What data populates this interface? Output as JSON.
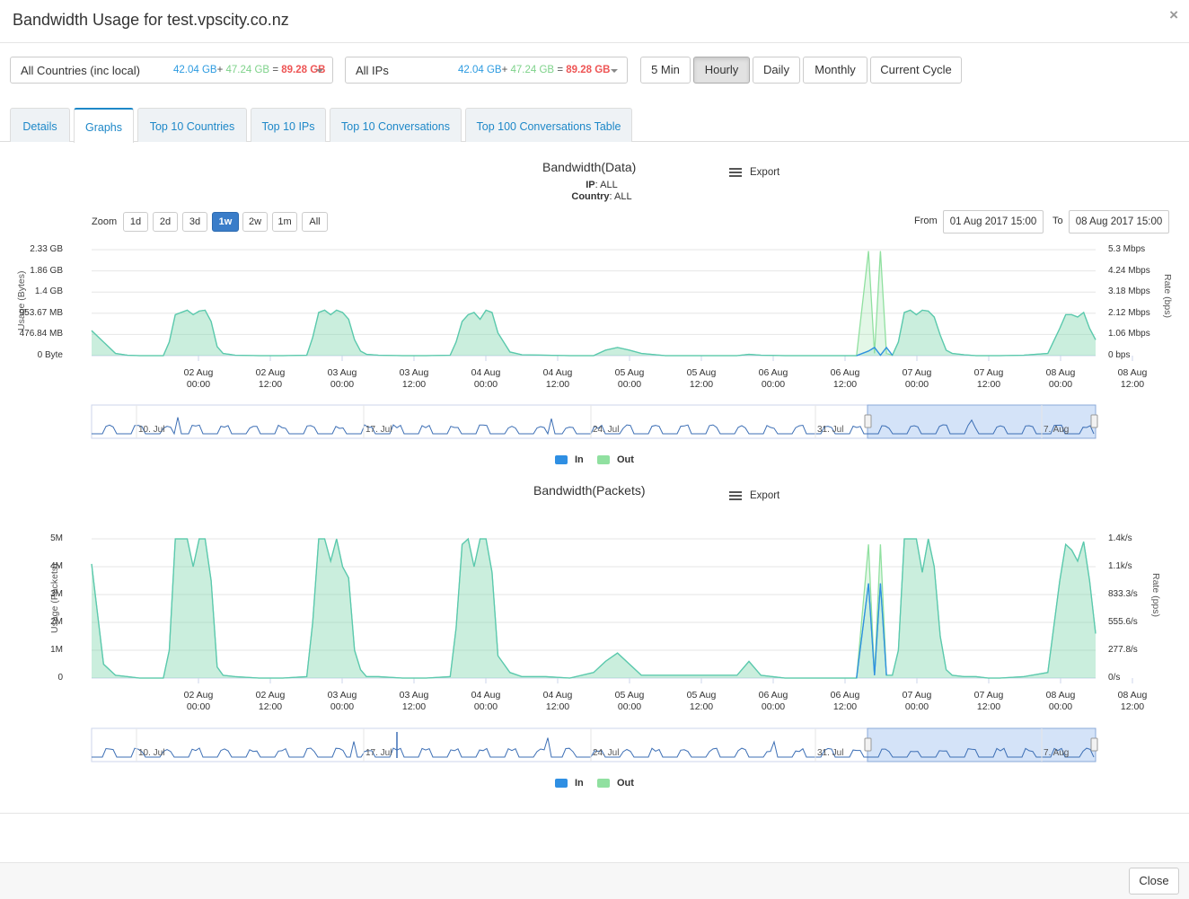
{
  "modal": {
    "title": "Bandwidth Usage for test.vpscity.co.nz",
    "close_icon": "×",
    "close_button": "Close"
  },
  "filters": {
    "countries": {
      "label": "All Countries (inc local)",
      "in": "42.04 GB",
      "plus": "+",
      "out": "47.24 GB",
      "eq": "=",
      "total": "89.28 GB"
    },
    "ips": {
      "label": "All IPs",
      "in": "42.04 GB",
      "plus": "+",
      "out": "47.24 GB",
      "eq": "=",
      "total": "89.28 GB"
    }
  },
  "periods": [
    {
      "label": "5 Min",
      "active": false
    },
    {
      "label": "Hourly",
      "active": true
    },
    {
      "label": "Daily",
      "active": false
    },
    {
      "label": "Monthly",
      "active": false
    },
    {
      "label": "Current Cycle",
      "active": false
    }
  ],
  "tabs": [
    {
      "label": "Details"
    },
    {
      "label": "Graphs"
    },
    {
      "label": "Top 10 Countries"
    },
    {
      "label": "Top 10 IPs"
    },
    {
      "label": "Top 10 Conversations"
    },
    {
      "label": "Top 100 Conversations Table"
    }
  ],
  "zoom": {
    "label": "Zoom",
    "options": [
      "1d",
      "2d",
      "3d",
      "1w",
      "2w",
      "1m",
      "All"
    ],
    "active": "1w"
  },
  "range": {
    "from_label": "From",
    "from": "01 Aug 2017 15:00",
    "to_label": "To",
    "to": "08 Aug 2017 15:00"
  },
  "export_label": "Export",
  "colors": {
    "in": "#2f8fe3",
    "out": "#90e0a0",
    "area": "#5ac8b0"
  },
  "legend": {
    "in": "In",
    "out": "Out"
  },
  "x_ticks": [
    [
      "02 Aug",
      "00:00"
    ],
    [
      "02 Aug",
      "12:00"
    ],
    [
      "03 Aug",
      "00:00"
    ],
    [
      "03 Aug",
      "12:00"
    ],
    [
      "04 Aug",
      "00:00"
    ],
    [
      "04 Aug",
      "12:00"
    ],
    [
      "05 Aug",
      "00:00"
    ],
    [
      "05 Aug",
      "12:00"
    ],
    [
      "06 Aug",
      "00:00"
    ],
    [
      "06 Aug",
      "12:00"
    ],
    [
      "07 Aug",
      "00:00"
    ],
    [
      "07 Aug",
      "12:00"
    ],
    [
      "08 Aug",
      "00:00"
    ],
    [
      "08 Aug",
      "12:00"
    ]
  ],
  "navigator_ticks": [
    "10. Jul",
    "17. Jul",
    "24. Jul",
    "31. Jul",
    "7. Aug"
  ],
  "navigator_ticks_packets": [
    "10. Jul",
    "17. Jul",
    "24. Jul",
    "31. Jul",
    "7. Aug"
  ],
  "chart_data": [
    {
      "type": "area",
      "title": "Bandwidth(Data)",
      "subtitle": {
        "ip_label": "IP",
        "ip": ": ALL",
        "country_label": "Country",
        "country": ": ALL"
      },
      "ylabel": "Usage (Bytes)",
      "ylabel_right": "Rate (bps)",
      "y_ticks": [
        "2.33 GB",
        "1.86 GB",
        "1.4 GB",
        "953.67 MB",
        "476.84 MB",
        "0 Byte"
      ],
      "y_ticks_right": [
        "5.3 Mbps",
        "4.24 Mbps",
        "3.18 Mbps",
        "2.12 Mbps",
        "1.06 Mbps",
        "0 bps"
      ],
      "ylim": [
        0,
        2.33
      ],
      "x_hours": [
        0,
        2,
        4,
        6,
        8,
        10,
        12,
        13,
        14,
        15,
        16,
        17,
        18,
        19,
        20,
        21,
        22,
        24,
        28,
        32,
        36,
        37,
        38,
        39,
        40,
        41,
        42,
        43,
        44,
        45,
        46,
        48,
        52,
        56,
        60,
        61,
        62,
        63,
        64,
        65,
        66,
        67,
        68,
        70,
        72,
        76,
        80,
        84,
        86,
        88,
        90,
        92,
        96,
        100,
        104,
        108,
        110,
        112,
        116,
        120,
        124,
        128,
        130,
        131,
        132,
        133,
        134,
        135,
        136,
        137,
        138,
        139,
        140,
        141,
        142,
        143,
        144,
        146,
        148,
        150,
        152,
        156,
        160,
        162,
        163,
        164,
        165,
        166,
        167,
        168
      ],
      "series": [
        {
          "name": "In",
          "values": [
            0.55,
            0.3,
            0.05,
            0.01,
            0,
            0,
            0,
            0.3,
            0.9,
            0.95,
            1.0,
            0.9,
            0.98,
            1.0,
            0.75,
            0.2,
            0.05,
            0.01,
            0,
            0,
            0.01,
            0.4,
            0.95,
            1.0,
            0.9,
            1.0,
            0.95,
            0.8,
            0.35,
            0.1,
            0.03,
            0.01,
            0,
            0,
            0.01,
            0.3,
            0.75,
            0.9,
            0.95,
            0.8,
            1.0,
            0.95,
            0.5,
            0.08,
            0.02,
            0.01,
            0,
            0,
            0.12,
            0.18,
            0.12,
            0.05,
            0,
            0,
            0,
            0,
            0.03,
            0.01,
            0,
            0,
            0,
            0,
            0.1,
            0.18,
            0.01,
            0.18,
            0.01,
            0.3,
            0.95,
            1.0,
            0.9,
            1.0,
            0.98,
            0.85,
            0.45,
            0.12,
            0.05,
            0.02,
            0,
            0,
            0,
            0.01,
            0.05,
            0.6,
            0.9,
            0.9,
            0.85,
            0.95,
            0.6,
            0.35
          ]
        },
        {
          "name": "Out",
          "values": [
            0.55,
            0.3,
            0.05,
            0.01,
            0,
            0,
            0,
            0.3,
            0.9,
            0.95,
            1.0,
            0.9,
            0.98,
            1.0,
            0.75,
            0.2,
            0.05,
            0.01,
            0,
            0,
            0.01,
            0.4,
            0.95,
            1.0,
            0.9,
            1.0,
            0.95,
            0.8,
            0.35,
            0.1,
            0.03,
            0.01,
            0,
            0,
            0.01,
            0.3,
            0.75,
            0.9,
            0.95,
            0.8,
            1.0,
            0.95,
            0.5,
            0.08,
            0.02,
            0.01,
            0,
            0,
            0.12,
            0.18,
            0.12,
            0.05,
            0,
            0,
            0,
            0,
            0.03,
            0.01,
            0,
            0,
            0,
            0,
            2.3,
            0.05,
            2.3,
            0.05,
            0.01,
            0.3,
            0.95,
            1.0,
            0.9,
            1.0,
            0.98,
            0.85,
            0.45,
            0.12,
            0.05,
            0.02,
            0,
            0,
            0,
            0.01,
            0.05,
            0.6,
            0.9,
            0.9,
            0.85,
            0.95,
            0.6,
            0.35
          ]
        }
      ]
    },
    {
      "type": "area",
      "title": "Bandwidth(Packets)",
      "ylabel": "Usage (Packets)",
      "ylabel_right": "Rate (pps)",
      "y_ticks": [
        "5M",
        "4M",
        "3M",
        "2M",
        "1M",
        "0"
      ],
      "y_ticks_right": [
        "1.4k/s",
        "1.1k/s",
        "833.3/s",
        "555.6/s",
        "277.8/s",
        "0/s"
      ],
      "ylim": [
        0,
        5
      ],
      "x_hours": [
        0,
        2,
        4,
        6,
        8,
        10,
        12,
        13,
        14,
        15,
        16,
        17,
        18,
        19,
        20,
        21,
        22,
        24,
        28,
        32,
        36,
        37,
        38,
        39,
        40,
        41,
        42,
        43,
        44,
        45,
        46,
        48,
        52,
        56,
        60,
        61,
        62,
        63,
        64,
        65,
        66,
        67,
        68,
        70,
        72,
        76,
        80,
        84,
        86,
        88,
        90,
        92,
        96,
        100,
        104,
        108,
        110,
        112,
        116,
        120,
        124,
        128,
        130,
        131,
        132,
        133,
        134,
        135,
        136,
        137,
        138,
        139,
        140,
        141,
        142,
        143,
        144,
        146,
        148,
        150,
        152,
        156,
        160,
        162,
        163,
        164,
        165,
        166,
        167,
        168
      ],
      "series": [
        {
          "name": "In",
          "values": [
            4.1,
            0.5,
            0.1,
            0.05,
            0,
            0,
            0,
            1.0,
            5.2,
            5.3,
            5.4,
            4.0,
            5.2,
            5.1,
            3.5,
            0.4,
            0.1,
            0.05,
            0,
            0,
            0.05,
            2.0,
            5.4,
            5.0,
            4.2,
            5.0,
            4.0,
            3.6,
            1.0,
            0.3,
            0.05,
            0.05,
            0,
            0,
            0.05,
            1.8,
            4.8,
            5.0,
            4.0,
            5.3,
            5.0,
            3.8,
            0.8,
            0.2,
            0.05,
            0.05,
            0,
            0.2,
            0.6,
            0.9,
            0.5,
            0.1,
            0.1,
            0.1,
            0.1,
            0.1,
            0.6,
            0.1,
            0,
            0,
            0,
            0,
            3.4,
            0.1,
            3.4,
            0.1,
            0.1,
            1.0,
            5.3,
            5.4,
            5.0,
            3.8,
            5.5,
            4.0,
            1.5,
            0.3,
            0.1,
            0.05,
            0.05,
            0,
            0,
            0.05,
            0.2,
            3.5,
            4.8,
            4.6,
            4.2,
            4.9,
            3.5,
            1.6
          ]
        },
        {
          "name": "Out",
          "values": [
            4.1,
            0.5,
            0.1,
            0.05,
            0,
            0,
            0,
            1.0,
            5.2,
            5.3,
            5.4,
            4.0,
            5.2,
            5.1,
            3.5,
            0.4,
            0.1,
            0.05,
            0,
            0,
            0.05,
            2.0,
            5.4,
            5.0,
            4.2,
            5.0,
            4.0,
            3.6,
            1.0,
            0.3,
            0.05,
            0.05,
            0,
            0,
            0.05,
            1.8,
            4.8,
            5.0,
            4.0,
            5.3,
            5.0,
            3.8,
            0.8,
            0.2,
            0.05,
            0.05,
            0,
            0.2,
            0.6,
            0.9,
            0.5,
            0.1,
            0.1,
            0.1,
            0.1,
            0.1,
            0.6,
            0.1,
            0,
            0,
            0,
            0,
            4.8,
            0.1,
            4.8,
            0.1,
            0.1,
            1.0,
            5.3,
            5.4,
            5.0,
            3.8,
            5.5,
            4.0,
            1.5,
            0.3,
            0.1,
            0.05,
            0.05,
            0,
            0,
            0.05,
            0.2,
            3.5,
            4.8,
            4.6,
            4.2,
            4.9,
            3.5,
            1.6
          ]
        }
      ]
    }
  ]
}
